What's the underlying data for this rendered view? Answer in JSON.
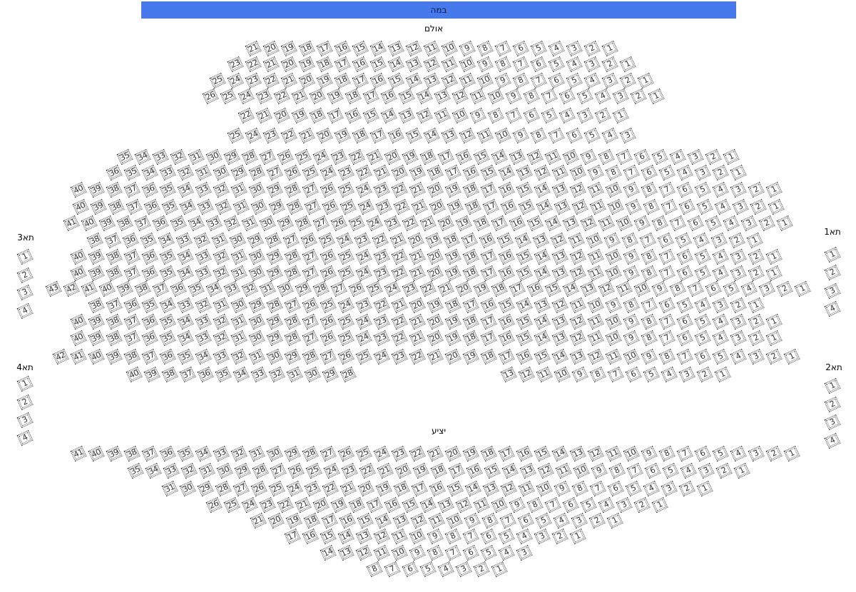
{
  "stage": {
    "label": "במה"
  },
  "hall": {
    "label": "אולם",
    "rows": [
      [
        {
          "from": 21,
          "to": 1
        }
      ],
      [
        {
          "from": 23,
          "to": 1
        }
      ],
      [
        {
          "from": 25,
          "to": 1
        }
      ],
      [
        {
          "from": 26,
          "to": 1
        }
      ],
      [
        {
          "from": 22,
          "to": 1
        }
      ],
      [
        {
          "from": 25,
          "to": 3
        }
      ],
      [
        {
          "from": 35,
          "to": 1
        }
      ],
      [
        {
          "from": 36,
          "to": 1
        }
      ],
      [
        {
          "from": 40,
          "to": 1
        }
      ],
      [
        {
          "from": 40,
          "to": 1
        }
      ],
      [
        {
          "from": 41,
          "to": 1
        }
      ],
      [
        {
          "from": 38,
          "to": 1
        }
      ],
      [
        {
          "from": 40,
          "to": 1
        }
      ],
      [
        {
          "from": 40,
          "to": 1
        }
      ],
      [
        {
          "from": 43,
          "to": 1
        }
      ],
      [
        {
          "from": 38,
          "to": 1
        }
      ],
      [
        {
          "from": 40,
          "to": 1
        }
      ],
      [
        {
          "from": 40,
          "to": 1
        }
      ],
      [
        {
          "from": 42,
          "to": 1
        }
      ],
      [
        {
          "from": 40,
          "to": 28
        },
        {
          "from": 13,
          "to": 1
        }
      ]
    ]
  },
  "balcony": {
    "label": "יציע",
    "rows": [
      [
        {
          "from": 41,
          "to": 1
        }
      ],
      [
        {
          "from": 35,
          "to": 1
        }
      ],
      [
        {
          "from": 31,
          "to": 1
        }
      ],
      [
        {
          "from": 26,
          "to": 1
        }
      ],
      [
        {
          "from": 21,
          "to": 1
        }
      ],
      [
        {
          "from": 17,
          "to": 1
        }
      ],
      [
        {
          "from": 14,
          "to": 3
        }
      ],
      [
        {
          "from": 8,
          "to": 1
        }
      ]
    ]
  },
  "boxes": [
    {
      "label": "תא1",
      "seats": [
        1,
        2,
        3,
        4
      ]
    },
    {
      "label": "תא2",
      "seats": [
        1,
        2,
        3,
        4
      ]
    },
    {
      "label": "תא3",
      "seats": [
        1,
        2,
        3,
        4
      ]
    },
    {
      "label": "תא4",
      "seats": [
        1,
        2,
        3,
        4
      ]
    }
  ],
  "colors": {
    "stage": "#4679ec",
    "seat_border": "#333333"
  }
}
